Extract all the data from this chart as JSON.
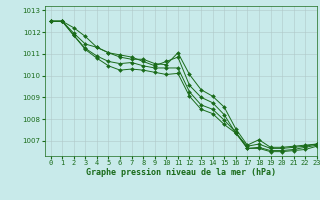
{
  "background_color": "#c8eaea",
  "line_color": "#1a6b1a",
  "grid_color": "#b0c8c8",
  "xlabel": "Graphe pression niveau de la mer (hPa)",
  "ylim": [
    1006.3,
    1013.2
  ],
  "xlim": [
    -0.5,
    23
  ],
  "yticks": [
    1007,
    1008,
    1009,
    1010,
    1011,
    1012,
    1013
  ],
  "xtick_labels": [
    "0",
    "1",
    "2",
    "3",
    "4",
    "5",
    "6",
    "7",
    "8",
    "9",
    "10",
    "11",
    "12",
    "13",
    "14",
    "15",
    "16",
    "17",
    "18",
    "19",
    "20",
    "21",
    "22",
    "23"
  ],
  "series": [
    [
      1012.5,
      1012.5,
      1012.2,
      1011.8,
      1011.3,
      1011.05,
      1010.85,
      1010.75,
      1010.75,
      1010.55,
      1010.5,
      1011.05,
      1010.05,
      1009.35,
      1009.05,
      1008.55,
      1007.55,
      1006.8,
      1007.05,
      1006.7,
      1006.7,
      1006.75,
      1006.8,
      1006.85
    ],
    [
      1012.5,
      1012.5,
      1011.95,
      1011.45,
      1011.3,
      1011.05,
      1010.95,
      1010.85,
      1010.65,
      1010.45,
      1010.65,
      1010.85,
      1009.55,
      1009.0,
      1008.75,
      1008.2,
      1007.35,
      1006.75,
      1006.85,
      1006.65,
      1006.65,
      1006.7,
      1006.75,
      1006.85
    ],
    [
      1012.5,
      1012.5,
      1011.85,
      1011.25,
      1010.9,
      1010.65,
      1010.55,
      1010.6,
      1010.45,
      1010.35,
      1010.35,
      1010.35,
      1009.25,
      1008.65,
      1008.45,
      1007.95,
      1007.4,
      1006.65,
      1006.7,
      1006.55,
      1006.55,
      1006.6,
      1006.7,
      1006.8
    ],
    [
      1012.5,
      1012.5,
      1011.85,
      1011.2,
      1010.8,
      1010.45,
      1010.25,
      1010.3,
      1010.25,
      1010.15,
      1010.05,
      1010.1,
      1009.05,
      1008.45,
      1008.25,
      1007.75,
      1007.35,
      1006.65,
      1006.65,
      1006.5,
      1006.5,
      1006.55,
      1006.6,
      1006.75
    ]
  ]
}
